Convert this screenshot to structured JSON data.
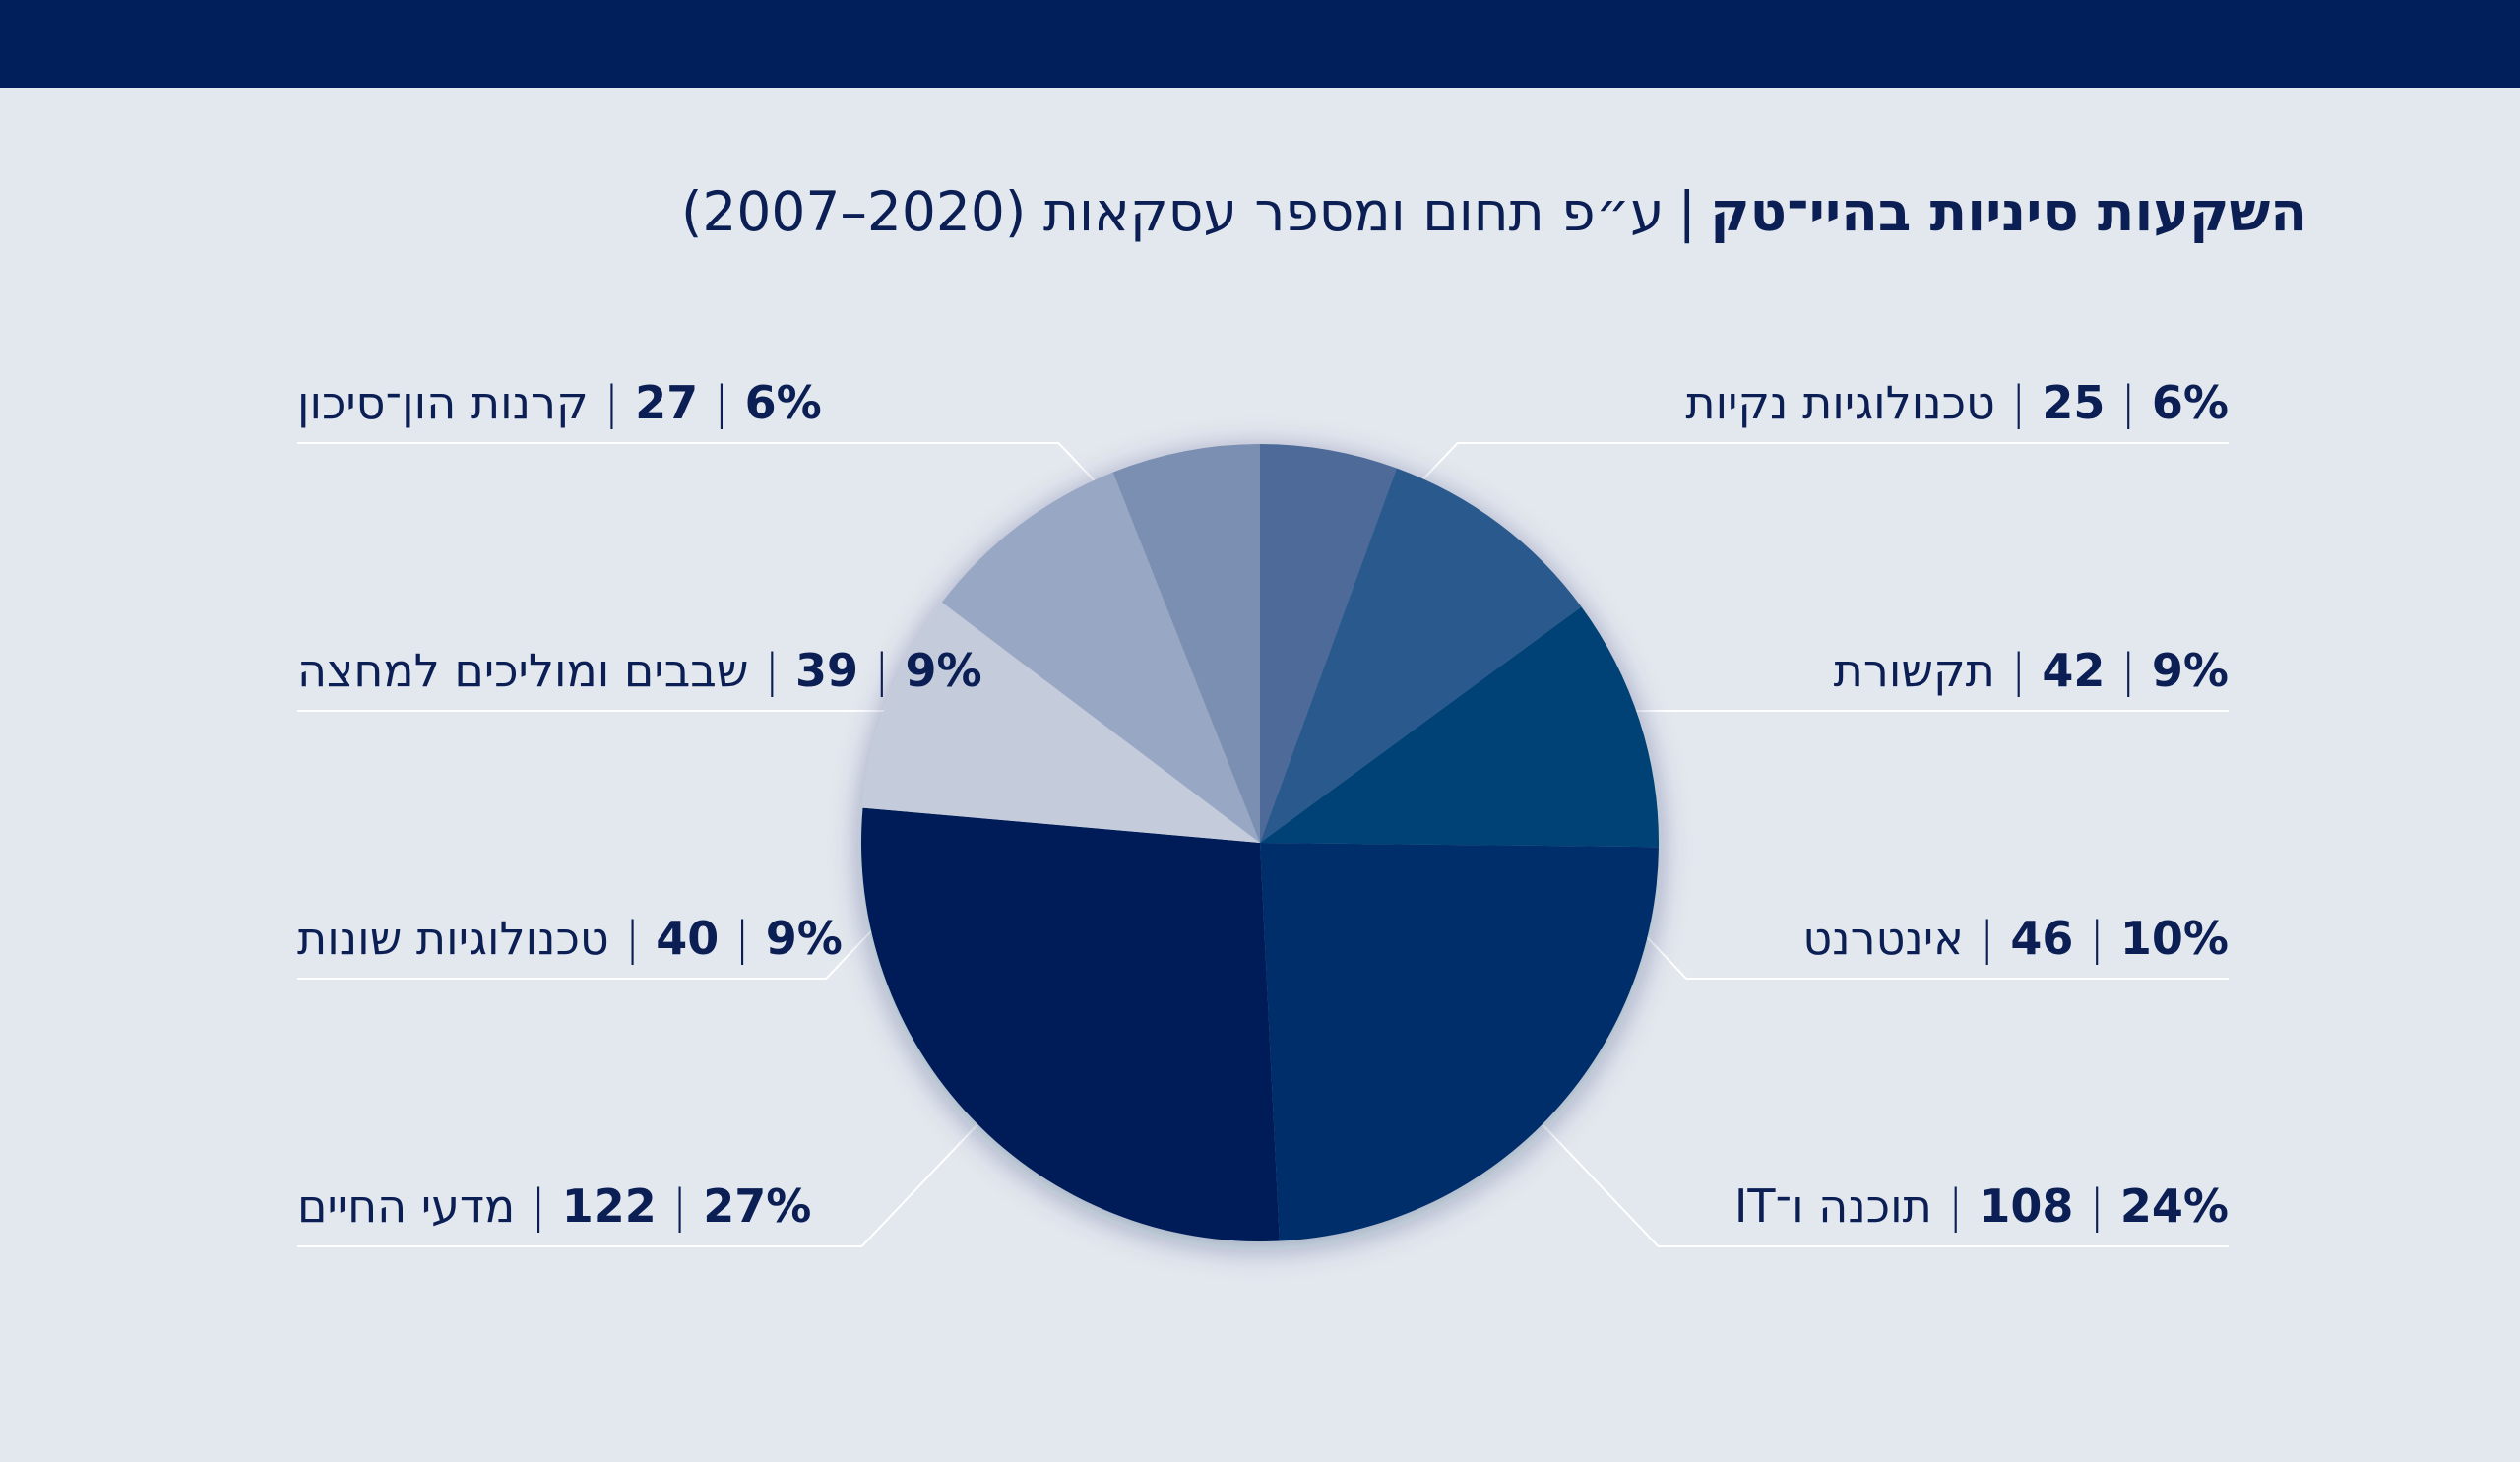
{
  "title": {
    "main": "השקעות סיניות בהיי־טק",
    "separator": "|",
    "sub": "ע״פ תחום ומספר עסקאות (2020–2007)"
  },
  "colors": {
    "top_bar": "#001f5b",
    "background": "#e3e8ef",
    "text": "#0b1f55",
    "leader_line": "#ffffff"
  },
  "chart_data": {
    "type": "pie",
    "title": "השקעות סיניות בהיי־טק | ע״פ תחום ומספר עסקאות (2020–2007)",
    "start": "top",
    "direction": "clockwise",
    "slices": [
      {
        "label": "טכנולוגיות נקיות",
        "count": 25,
        "percent": "6%",
        "color": "#4d6b98",
        "side": "right",
        "row": 0
      },
      {
        "label": "תקשורת",
        "count": 42,
        "percent": "9%",
        "color": "#2c5a8d",
        "side": "right",
        "row": 1
      },
      {
        "label": "אינטרנט",
        "count": 46,
        "percent": "10%",
        "color": "#004376",
        "side": "right",
        "row": 2
      },
      {
        "label": "תוכנה ו־IT",
        "count": 108,
        "percent": "24%",
        "color": "#002f6b",
        "side": "right",
        "row": 3
      },
      {
        "label": "מדעי החיים",
        "count": 122,
        "percent": "27%",
        "color": "#001f58",
        "side": "left",
        "row": 3
      },
      {
        "label": "טכנולוגיות שונות",
        "count": 40,
        "percent": "9%",
        "color": "#c4ccdc",
        "side": "left",
        "row": 2
      },
      {
        "label": "שבבים ומוליכים למחצה",
        "count": 39,
        "percent": "9%",
        "color": "#98a8c4",
        "side": "left",
        "row": 1
      },
      {
        "label": "קרנות הון־סיכון",
        "count": 27,
        "percent": "6%",
        "color": "#7a8fb1",
        "side": "left",
        "row": 0
      }
    ]
  }
}
